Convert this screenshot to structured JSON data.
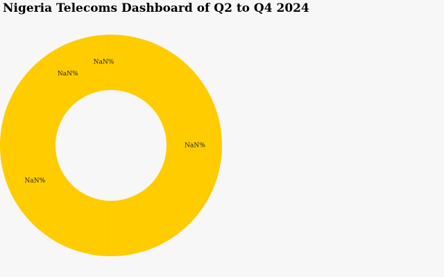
{
  "chart_data": {
    "type": "pie",
    "title": "Nigeria Telecoms Dashboard of Q2 to Q4 2024",
    "values": [
      null,
      null,
      null,
      null
    ],
    "value_labels": [
      "NaN%",
      "NaN%",
      "NaN%",
      "NaN%"
    ],
    "color": "#ffcc00",
    "hole": true
  }
}
